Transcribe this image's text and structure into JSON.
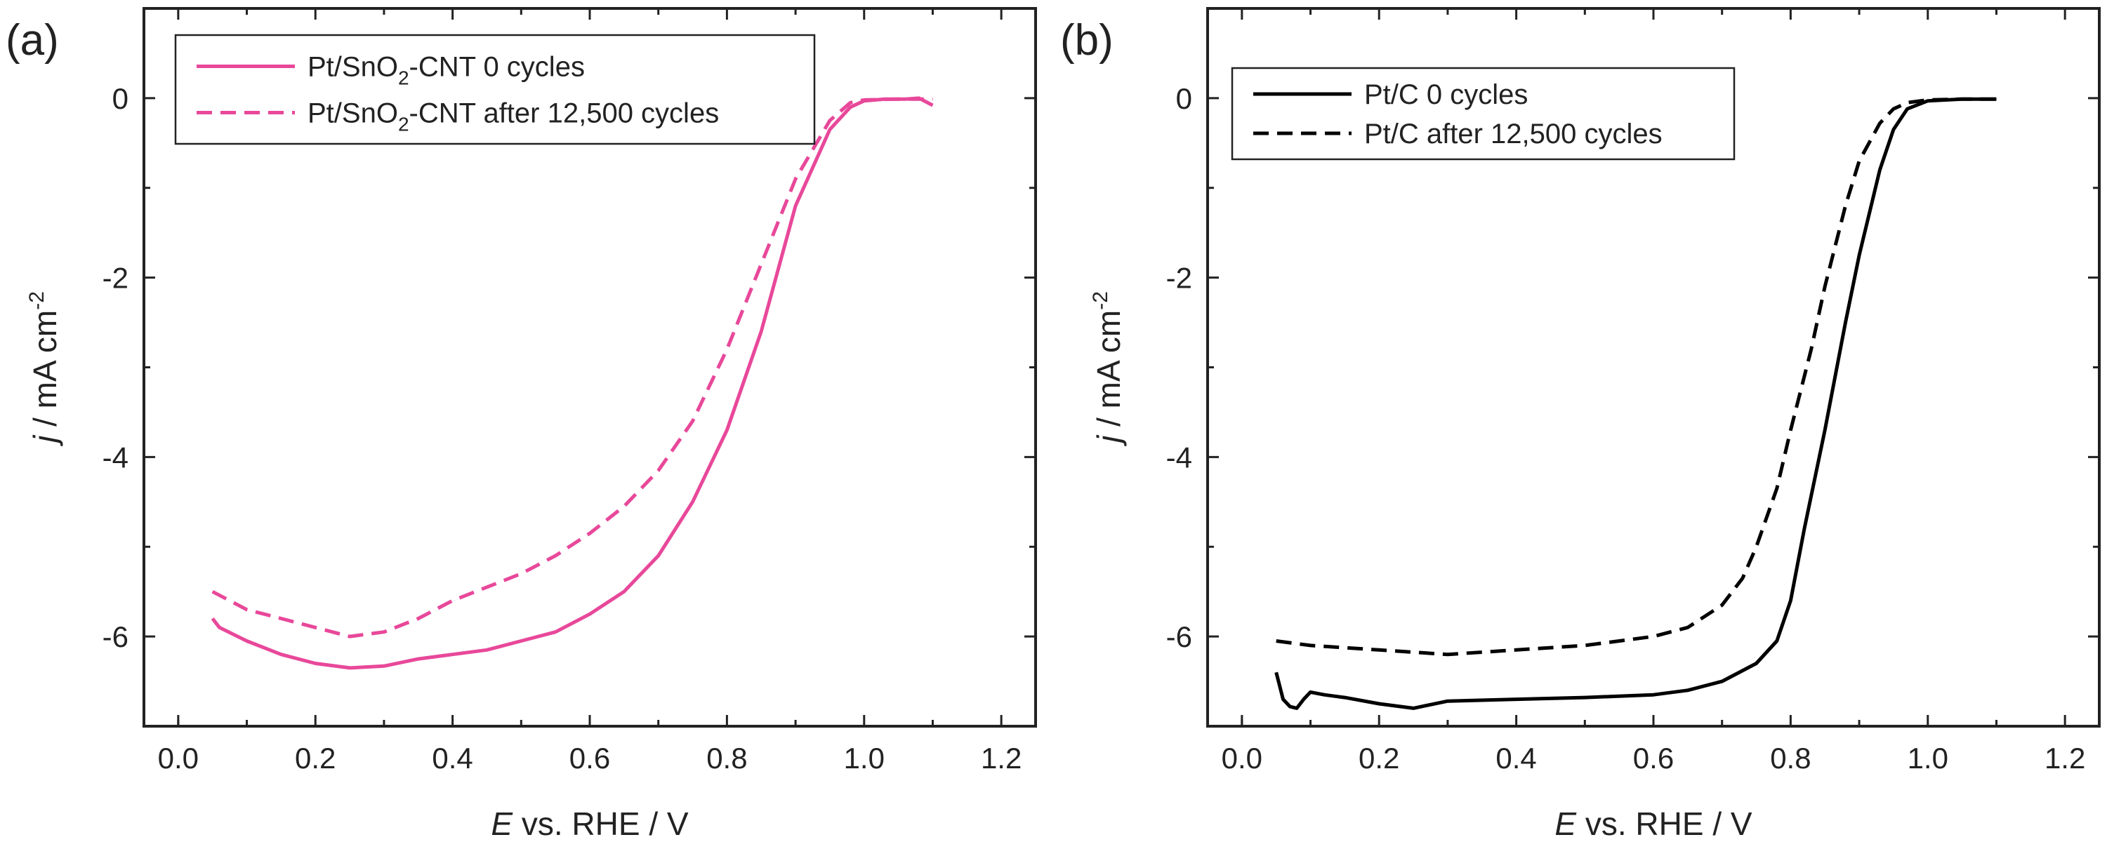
{
  "figure": {
    "panels": [
      {
        "label": "(a)"
      },
      {
        "label": "(b)"
      }
    ]
  },
  "chart_data": [
    {
      "type": "line",
      "panel": "(a)",
      "xlabel": {
        "italic": "E",
        "rest": " vs. RHE / V"
      },
      "ylabel": {
        "italic": "j",
        "rest": " / mA cm",
        "sup": "-2"
      },
      "xlim": [
        -0.05,
        1.25
      ],
      "ylim": [
        -7.0,
        1.0
      ],
      "xticks": [
        "0.0",
        "0.2",
        "0.4",
        "0.6",
        "0.8",
        "1.0",
        "1.2"
      ],
      "xtick_values": [
        0.0,
        0.2,
        0.4,
        0.6,
        0.8,
        1.0,
        1.2
      ],
      "yticks": [
        "0",
        "-2",
        "-4",
        "-6"
      ],
      "ytick_values": [
        0,
        -2,
        -4,
        -6
      ],
      "legend_position": "top-left",
      "series": [
        {
          "name": "Pt/SnO2-CNT 0 cycles",
          "legend_parts": {
            "pre": "Pt/SnO",
            "sub": "2",
            "post": "-CNT 0 cycles"
          },
          "color": "#e8489a",
          "dash": "solid",
          "x": [
            0.05,
            0.06,
            0.1,
            0.15,
            0.2,
            0.25,
            0.3,
            0.35,
            0.4,
            0.45,
            0.5,
            0.55,
            0.6,
            0.65,
            0.7,
            0.75,
            0.8,
            0.85,
            0.9,
            0.95,
            0.98,
            1.0,
            1.03,
            1.06,
            1.08,
            1.1
          ],
          "y": [
            -5.8,
            -5.9,
            -6.05,
            -6.2,
            -6.3,
            -6.35,
            -6.33,
            -6.25,
            -6.2,
            -6.15,
            -6.05,
            -5.95,
            -5.75,
            -5.5,
            -5.1,
            -4.5,
            -3.7,
            -2.6,
            -1.2,
            -0.35,
            -0.1,
            -0.03,
            -0.01,
            -0.01,
            0.0,
            -0.08
          ]
        },
        {
          "name": "Pt/SnO2-CNT after 12,500 cycles",
          "legend_parts": {
            "pre": "Pt/SnO",
            "sub": "2",
            "post": "-CNT after 12,500 cycles"
          },
          "color": "#e8489a",
          "dash": "dashed",
          "x": [
            0.05,
            0.1,
            0.15,
            0.2,
            0.25,
            0.3,
            0.35,
            0.4,
            0.45,
            0.5,
            0.55,
            0.6,
            0.65,
            0.7,
            0.75,
            0.8,
            0.85,
            0.9,
            0.95,
            0.98,
            1.0,
            1.05,
            1.1
          ],
          "y": [
            -5.5,
            -5.7,
            -5.8,
            -5.9,
            -6.0,
            -5.95,
            -5.8,
            -5.6,
            -5.45,
            -5.3,
            -5.1,
            -4.85,
            -4.55,
            -4.15,
            -3.6,
            -2.8,
            -1.85,
            -0.9,
            -0.25,
            -0.05,
            -0.02,
            -0.01,
            -0.01
          ]
        }
      ]
    },
    {
      "type": "line",
      "panel": "(b)",
      "xlabel": {
        "italic": "E",
        "rest": " vs. RHE / V"
      },
      "ylabel": {
        "italic": "j",
        "rest": " / mA cm",
        "sup": "-2"
      },
      "xlim": [
        -0.05,
        1.25
      ],
      "ylim": [
        -7.0,
        1.0
      ],
      "xticks": [
        "0.0",
        "0.2",
        "0.4",
        "0.6",
        "0.8",
        "1.0",
        "1.2"
      ],
      "xtick_values": [
        0.0,
        0.2,
        0.4,
        0.6,
        0.8,
        1.0,
        1.2
      ],
      "yticks": [
        "0",
        "-2",
        "-4",
        "-6"
      ],
      "ytick_values": [
        0,
        -2,
        -4,
        -6
      ],
      "legend_position": "top-left",
      "series": [
        {
          "name": "Pt/C 0 cycles",
          "legend_parts": {
            "pre": "Pt/C 0 cycles",
            "sub": "",
            "post": ""
          },
          "color": "#000000",
          "dash": "solid",
          "x": [
            0.05,
            0.06,
            0.07,
            0.08,
            0.09,
            0.1,
            0.12,
            0.15,
            0.2,
            0.25,
            0.3,
            0.4,
            0.5,
            0.6,
            0.65,
            0.7,
            0.75,
            0.78,
            0.8,
            0.82,
            0.85,
            0.88,
            0.9,
            0.93,
            0.95,
            0.97,
            1.0,
            1.05,
            1.1
          ],
          "y": [
            -6.4,
            -6.7,
            -6.78,
            -6.8,
            -6.7,
            -6.62,
            -6.65,
            -6.68,
            -6.75,
            -6.8,
            -6.72,
            -6.7,
            -6.68,
            -6.65,
            -6.6,
            -6.5,
            -6.3,
            -6.05,
            -5.6,
            -4.8,
            -3.7,
            -2.5,
            -1.75,
            -0.8,
            -0.35,
            -0.12,
            -0.03,
            -0.01,
            -0.01
          ]
        },
        {
          "name": "Pt/C after 12,500 cycles",
          "legend_parts": {
            "pre": "Pt/C after 12,500 cycles",
            "sub": "",
            "post": ""
          },
          "color": "#000000",
          "dash": "dashed",
          "x": [
            0.05,
            0.1,
            0.2,
            0.3,
            0.4,
            0.5,
            0.6,
            0.65,
            0.7,
            0.73,
            0.75,
            0.78,
            0.8,
            0.83,
            0.85,
            0.88,
            0.9,
            0.93,
            0.95,
            0.97,
            1.0,
            1.05,
            1.1
          ],
          "y": [
            -6.05,
            -6.1,
            -6.15,
            -6.2,
            -6.15,
            -6.1,
            -6.0,
            -5.9,
            -5.65,
            -5.35,
            -5.0,
            -4.35,
            -3.7,
            -2.8,
            -2.1,
            -1.2,
            -0.7,
            -0.28,
            -0.12,
            -0.05,
            -0.02,
            -0.01,
            -0.01
          ]
        }
      ]
    }
  ]
}
